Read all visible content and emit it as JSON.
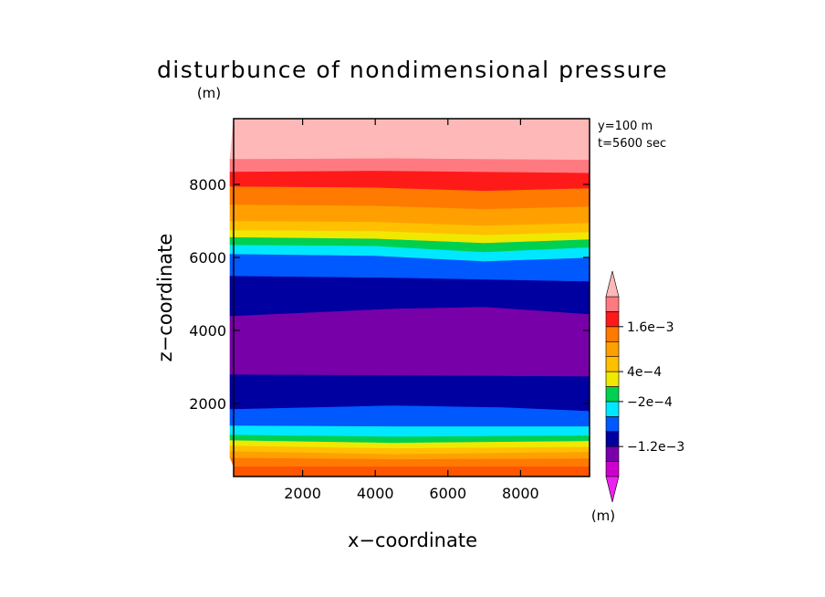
{
  "chart_data": {
    "type": "contour",
    "title": "disturbunce of nondimensional pressure",
    "title_unit": "(m)",
    "xlabel": "x−coordinate",
    "ylabel": "z−coordinate",
    "annotation_lines": [
      "y=100 m",
      "t=5600 sec"
    ],
    "xlim": [
      0,
      10000
    ],
    "ylim": [
      0,
      10000
    ],
    "xticks": [
      2000,
      4000,
      6000,
      8000
    ],
    "xtick_labels": [
      "2000",
      "4000",
      "6000",
      "8000"
    ],
    "yticks": [
      2000,
      4000,
      6000,
      8000
    ],
    "ytick_labels": [
      "2000",
      "4000",
      "6000",
      "8000"
    ],
    "plot_extent_x": [
      100,
      9900
    ],
    "plot_extent_z": [
      0,
      9800
    ],
    "bands": [
      {
        "color": "#ff5500",
        "level": -1,
        "lower": [
          [
            0,
            0
          ]
        ],
        "upper": [
          [
            0,
            280
          ]
        ]
      },
      {
        "color": "#ff7a00",
        "level": 0,
        "lower": [
          [
            0,
            280
          ]
        ],
        "upper": [
          [
            0,
            520
          ],
          [
            4500,
            480
          ],
          [
            9900,
            500
          ]
        ]
      },
      {
        "color": "#ffa000",
        "level": 1,
        "lower": [
          [
            0,
            520
          ],
          [
            4500,
            480
          ],
          [
            9900,
            500
          ]
        ],
        "upper": [
          [
            0,
            700
          ],
          [
            4500,
            620
          ],
          [
            9900,
            680
          ]
        ]
      },
      {
        "color": "#ffc000",
        "level": 2,
        "lower": [
          [
            0,
            700
          ],
          [
            4500,
            620
          ],
          [
            9900,
            680
          ]
        ],
        "upper": [
          [
            0,
            850
          ],
          [
            4500,
            780
          ],
          [
            9900,
            820
          ]
        ]
      },
      {
        "color": "#f0e800",
        "level": 3,
        "lower": [
          [
            0,
            850
          ],
          [
            4500,
            780
          ],
          [
            9900,
            820
          ]
        ],
        "upper": [
          [
            0,
            1000
          ],
          [
            4500,
            930
          ],
          [
            9900,
            980
          ]
        ]
      },
      {
        "color": "#00d050",
        "level": 4,
        "lower": [
          [
            0,
            1000
          ],
          [
            4500,
            930
          ],
          [
            9900,
            980
          ]
        ],
        "upper": [
          [
            0,
            1150
          ],
          [
            4500,
            1100
          ],
          [
            9900,
            1130
          ]
        ]
      },
      {
        "color": "#00e8ff",
        "level": 5,
        "lower": [
          [
            0,
            1150
          ],
          [
            4500,
            1100
          ],
          [
            9900,
            1130
          ]
        ],
        "upper": [
          [
            0,
            1400
          ],
          [
            4500,
            1380
          ],
          [
            9900,
            1380
          ]
        ]
      },
      {
        "color": "#0058ff",
        "level": 6,
        "lower": [
          [
            0,
            1400
          ],
          [
            4500,
            1380
          ],
          [
            9900,
            1380
          ]
        ],
        "upper": [
          [
            0,
            1850
          ],
          [
            4500,
            1950
          ],
          [
            7500,
            1900
          ],
          [
            9900,
            1800
          ]
        ]
      },
      {
        "color": "#0000a0",
        "level": 7,
        "lower": [
          [
            0,
            1850
          ],
          [
            4500,
            1950
          ],
          [
            7500,
            1900
          ],
          [
            9900,
            1800
          ]
        ],
        "upper": [
          [
            0,
            2800
          ],
          [
            4500,
            2780
          ],
          [
            9900,
            2750
          ]
        ]
      },
      {
        "color": "#7800a8",
        "level": 8,
        "lower": [
          [
            0,
            2800
          ],
          [
            4500,
            2780
          ],
          [
            9900,
            2750
          ]
        ],
        "upper": [
          [
            0,
            4400
          ],
          [
            4500,
            4600
          ],
          [
            7000,
            4650
          ],
          [
            9900,
            4450
          ]
        ]
      },
      {
        "color": "#0000a0",
        "level": 7,
        "lower": [
          [
            0,
            4400
          ],
          [
            4500,
            4600
          ],
          [
            7000,
            4650
          ],
          [
            9900,
            4450
          ]
        ],
        "upper": [
          [
            0,
            5500
          ],
          [
            4500,
            5450
          ],
          [
            9900,
            5350
          ]
        ]
      },
      {
        "color": "#0058ff",
        "level": 6,
        "lower": [
          [
            0,
            5500
          ],
          [
            4500,
            5450
          ],
          [
            9900,
            5350
          ]
        ],
        "upper": [
          [
            0,
            6100
          ],
          [
            4000,
            6050
          ],
          [
            7000,
            5900
          ],
          [
            9900,
            6000
          ]
        ]
      },
      {
        "color": "#00e8ff",
        "level": 5,
        "lower": [
          [
            0,
            6100
          ],
          [
            4000,
            6050
          ],
          [
            7000,
            5900
          ],
          [
            9900,
            6000
          ]
        ],
        "upper": [
          [
            0,
            6350
          ],
          [
            4000,
            6320
          ],
          [
            7000,
            6150
          ],
          [
            9900,
            6280
          ]
        ]
      },
      {
        "color": "#00d050",
        "level": 4,
        "lower": [
          [
            0,
            6350
          ],
          [
            4000,
            6320
          ],
          [
            7000,
            6150
          ],
          [
            9900,
            6280
          ]
        ],
        "upper": [
          [
            0,
            6560
          ],
          [
            4000,
            6520
          ],
          [
            7000,
            6400
          ],
          [
            9900,
            6500
          ]
        ]
      },
      {
        "color": "#f0e800",
        "level": 3,
        "lower": [
          [
            0,
            6560
          ],
          [
            4000,
            6520
          ],
          [
            7000,
            6400
          ],
          [
            9900,
            6500
          ]
        ],
        "upper": [
          [
            0,
            6750
          ],
          [
            4000,
            6730
          ],
          [
            7000,
            6620
          ],
          [
            9900,
            6700
          ]
        ]
      },
      {
        "color": "#ffc000",
        "level": 2,
        "lower": [
          [
            0,
            6750
          ],
          [
            4000,
            6730
          ],
          [
            7000,
            6620
          ],
          [
            9900,
            6700
          ]
        ],
        "upper": [
          [
            0,
            7000
          ],
          [
            4000,
            6980
          ],
          [
            7000,
            6880
          ],
          [
            9900,
            6950
          ]
        ]
      },
      {
        "color": "#ffa000",
        "level": 1,
        "lower": [
          [
            0,
            7000
          ],
          [
            4000,
            6980
          ],
          [
            7000,
            6880
          ],
          [
            9900,
            6950
          ]
        ],
        "upper": [
          [
            0,
            7450
          ],
          [
            4000,
            7420
          ],
          [
            7000,
            7330
          ],
          [
            9900,
            7400
          ]
        ]
      },
      {
        "color": "#ff7a00",
        "level": 0,
        "lower": [
          [
            0,
            7450
          ],
          [
            4000,
            7420
          ],
          [
            7000,
            7330
          ],
          [
            9900,
            7400
          ]
        ],
        "upper": [
          [
            0,
            7950
          ],
          [
            4000,
            7920
          ],
          [
            7000,
            7830
          ],
          [
            9900,
            7900
          ]
        ]
      },
      {
        "color": "#ff1a1a",
        "level": 9,
        "lower": [
          [
            0,
            7950
          ],
          [
            4000,
            7920
          ],
          [
            7000,
            7830
          ],
          [
            9900,
            7900
          ]
        ],
        "upper": [
          [
            0,
            8350
          ],
          [
            4000,
            8380
          ],
          [
            9900,
            8320
          ]
        ]
      },
      {
        "color": "#ff7a80",
        "level": 10,
        "lower": [
          [
            0,
            8350
          ],
          [
            4000,
            8380
          ],
          [
            9900,
            8320
          ]
        ],
        "upper": [
          [
            0,
            8700
          ],
          [
            4500,
            8720
          ],
          [
            9900,
            8680
          ]
        ]
      },
      {
        "color": "#ffb8b8",
        "level": 11,
        "lower": [
          [
            0,
            8700
          ],
          [
            4500,
            8720
          ],
          [
            9900,
            8680
          ]
        ],
        "upper": [
          [
            0,
            9800
          ]
        ]
      }
    ],
    "colorbar": {
      "unit": "(m)",
      "segments": [
        "#cc00cc",
        "#7800a8",
        "#0000a0",
        "#0058ff",
        "#00e8ff",
        "#00d050",
        "#f0e800",
        "#ffc000",
        "#ffa000",
        "#ff7a00",
        "#ff1a1a",
        "#ff7a80"
      ],
      "top_arrow_color": "#ffb8b8",
      "bottom_arrow_color": "#ee22ee",
      "tick_labels": [
        {
          "label": "−1.2e−3",
          "boundary": 2
        },
        {
          "label": "−2e−4",
          "boundary": 5
        },
        {
          "label": "4e−4",
          "boundary": 7
        },
        {
          "label": "1.6e−3",
          "boundary": 10
        }
      ]
    }
  }
}
